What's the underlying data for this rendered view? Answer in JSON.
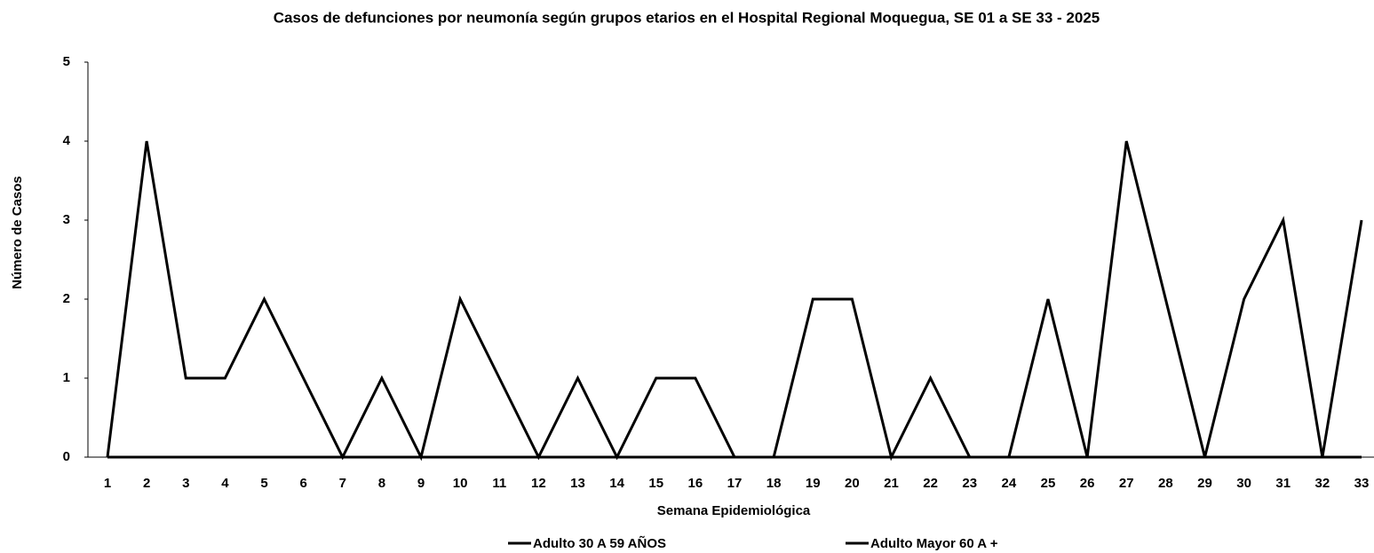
{
  "chart_data": {
    "type": "line",
    "title": "Casos de defunciones por neumonía según grupos etarios en el Hospital Regional Moquegua, SE 01 a SE 33 - 2025",
    "x_label": "Semana Epidemiológica",
    "y_label": "Número de Casos",
    "categories": [
      "1",
      "2",
      "3",
      "4",
      "5",
      "6",
      "7",
      "8",
      "9",
      "10",
      "11",
      "12",
      "13",
      "14",
      "15",
      "16",
      "17",
      "18",
      "19",
      "20",
      "21",
      "22",
      "23",
      "24",
      "25",
      "26",
      "27",
      "28",
      "29",
      "30",
      "31",
      "32",
      "33"
    ],
    "series": [
      {
        "name": "Adulto 30 A 59 AÑOS",
        "color": "#000000",
        "values": [
          0,
          0,
          0,
          0,
          0,
          0,
          0,
          0,
          0,
          0,
          0,
          0,
          0,
          0,
          0,
          0,
          0,
          0,
          0,
          0,
          0,
          0,
          0,
          0,
          0,
          0,
          0,
          0,
          0,
          0,
          0,
          0,
          0
        ]
      },
      {
        "name": "Adulto Mayor 60 A +",
        "color": "#000000",
        "values": [
          0,
          4,
          1,
          1,
          2,
          1,
          0,
          1,
          0,
          2,
          1,
          0,
          1,
          0,
          1,
          1,
          0,
          0,
          2,
          2,
          0,
          1,
          0,
          0,
          2,
          0,
          4,
          2,
          0,
          2,
          3,
          0,
          3
        ]
      }
    ],
    "ylim": [
      0,
      5
    ],
    "yticks": [
      0,
      1,
      2,
      3,
      4,
      5
    ],
    "grid": false
  }
}
